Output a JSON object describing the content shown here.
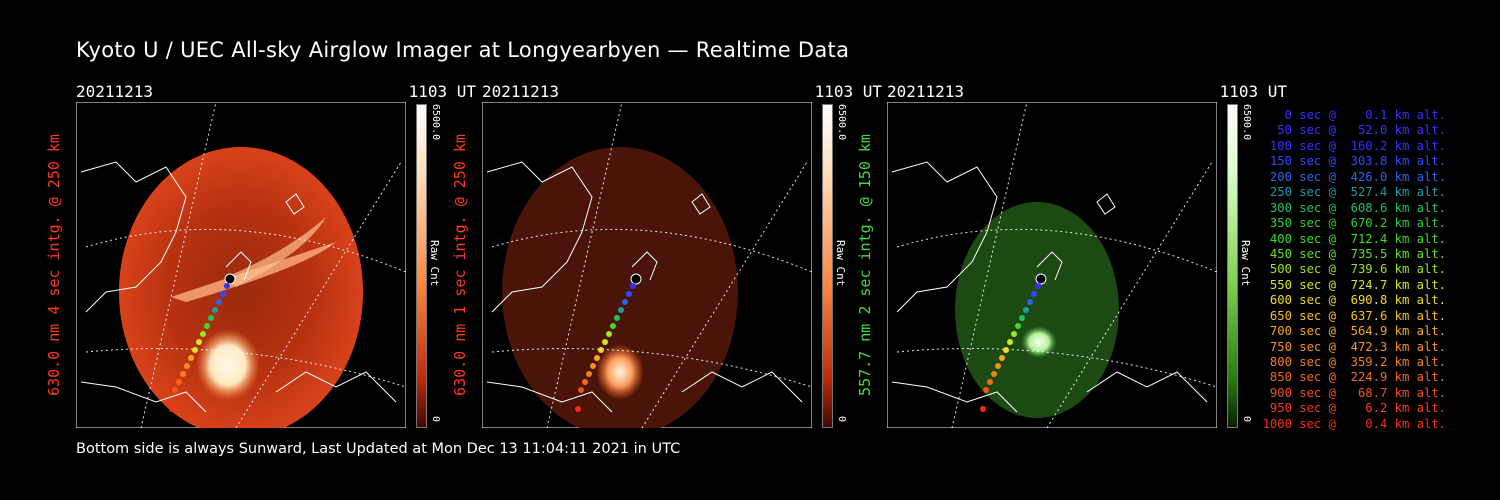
{
  "title": "Kyoto U / UEC All-sky Airglow Imager at Longyearbyen — Realtime Data",
  "footer": "Bottom side is always Sunward, Last Updated at Mon Dec 13 11:04:11 2021 in UTC",
  "panels": [
    {
      "date": "20211213",
      "time": "1103 UT",
      "label": "630.0 nm 4 sec intg. @ 250 km",
      "label_color": "#ff3a1a",
      "cbar_max": "6500.0",
      "cbar_unit": "Raw Cnt",
      "cbar_min": "0"
    },
    {
      "date": "20211213",
      "time": "1103 UT",
      "label": "630.0 nm 1 sec intg. @ 250 km",
      "label_color": "#ff3a1a",
      "cbar_max": "6500.0",
      "cbar_unit": "Raw Cnt",
      "cbar_min": "0"
    },
    {
      "date": "20211213",
      "time": "1103 UT",
      "label": "557.7 nm 2 sec intg. @ 150 km",
      "label_color": "#3fdc3f",
      "cbar_max": "6500.0",
      "cbar_unit": "Raw Cnt",
      "cbar_min": "0"
    }
  ],
  "legend": [
    {
      "text": "   0 sec @    0.1 km alt.",
      "color": "#3c2dff"
    },
    {
      "text": "  50 sec @   52.0 km alt.",
      "color": "#3c2dff"
    },
    {
      "text": " 100 sec @  160.2 km alt.",
      "color": "#3230ff"
    },
    {
      "text": " 150 sec @  303.8 km alt.",
      "color": "#2a4bff"
    },
    {
      "text": " 200 sec @  426.0 km alt.",
      "color": "#2a66ee"
    },
    {
      "text": " 250 sec @  527.4 km alt.",
      "color": "#1e9aa8"
    },
    {
      "text": " 300 sec @  608.6 km alt.",
      "color": "#22c060"
    },
    {
      "text": " 350 sec @  670.2 km alt.",
      "color": "#2ed030"
    },
    {
      "text": " 400 sec @  712.4 km alt.",
      "color": "#3ddc28"
    },
    {
      "text": " 450 sec @  735.5 km alt.",
      "color": "#66e026"
    },
    {
      "text": " 500 sec @  739.6 km alt.",
      "color": "#9ce624"
    },
    {
      "text": " 550 sec @  724.7 km alt.",
      "color": "#d2e822"
    },
    {
      "text": " 600 sec @  690.8 km alt.",
      "color": "#f0dc22"
    },
    {
      "text": " 650 sec @  637.6 km alt.",
      "color": "#f6c020"
    },
    {
      "text": " 700 sec @  564.9 km alt.",
      "color": "#f8a820"
    },
    {
      "text": " 750 sec @  472.3 km alt.",
      "color": "#f89020"
    },
    {
      "text": " 800 sec @  359.2 km alt.",
      "color": "#f8801e"
    },
    {
      "text": " 850 sec @  224.9 km alt.",
      "color": "#f8681c"
    },
    {
      "text": " 900 sec @   68.7 km alt.",
      "color": "#f8501a"
    },
    {
      "text": " 950 sec @    6.2 km alt.",
      "color": "#f83c18"
    },
    {
      "text": "1000 sec @    0.4 km alt.",
      "color": "#f82c16"
    }
  ]
}
